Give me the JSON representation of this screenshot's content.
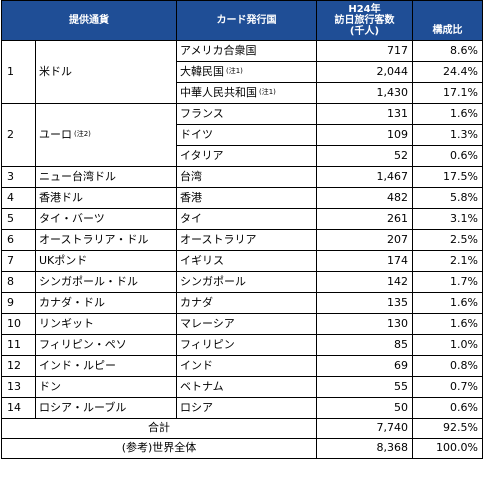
{
  "headers": {
    "currency": "提供通貨",
    "issuer": "カード発行国",
    "visitors_line1": "H24年",
    "visitors_line2": "訪日旅行客数",
    "visitors_line3": "(千人)",
    "share": "構成比"
  },
  "groups": [
    {
      "no": "1",
      "currency": "米ドル",
      "currency_note": "",
      "rows": [
        {
          "country": "アメリカ合衆国",
          "note": "",
          "visitors": "717",
          "share": "8.6%"
        },
        {
          "country": "大韓民国",
          "note": "(注1)",
          "visitors": "2,044",
          "share": "24.4%"
        },
        {
          "country": "中華人民共和国",
          "note": "(注1)",
          "visitors": "1,430",
          "share": "17.1%"
        }
      ]
    },
    {
      "no": "2",
      "currency": "ユーロ",
      "currency_note": "(注2)",
      "rows": [
        {
          "country": "フランス",
          "note": "",
          "visitors": "131",
          "share": "1.6%"
        },
        {
          "country": "ドイツ",
          "note": "",
          "visitors": "109",
          "share": "1.3%"
        },
        {
          "country": "イタリア",
          "note": "",
          "visitors": "52",
          "share": "0.6%"
        }
      ]
    },
    {
      "no": "3",
      "currency": "ニュー台湾ドル",
      "currency_note": "",
      "rows": [
        {
          "country": "台湾",
          "note": "",
          "visitors": "1,467",
          "share": "17.5%"
        }
      ]
    },
    {
      "no": "4",
      "currency": "香港ドル",
      "currency_note": "",
      "rows": [
        {
          "country": "香港",
          "note": "",
          "visitors": "482",
          "share": "5.8%"
        }
      ]
    },
    {
      "no": "5",
      "currency": "タイ・バーツ",
      "currency_note": "",
      "rows": [
        {
          "country": "タイ",
          "note": "",
          "visitors": "261",
          "share": "3.1%"
        }
      ]
    },
    {
      "no": "6",
      "currency": "オーストラリア・ドル",
      "currency_note": "",
      "rows": [
        {
          "country": "オーストラリア",
          "note": "",
          "visitors": "207",
          "share": "2.5%"
        }
      ]
    },
    {
      "no": "7",
      "currency": "UKポンド",
      "currency_note": "",
      "rows": [
        {
          "country": "イギリス",
          "note": "",
          "visitors": "174",
          "share": "2.1%"
        }
      ]
    },
    {
      "no": "8",
      "currency": "シンガポール・ドル",
      "currency_note": "",
      "rows": [
        {
          "country": "シンガポール",
          "note": "",
          "visitors": "142",
          "share": "1.7%"
        }
      ]
    },
    {
      "no": "9",
      "currency": "カナダ・ドル",
      "currency_note": "",
      "rows": [
        {
          "country": "カナダ",
          "note": "",
          "visitors": "135",
          "share": "1.6%"
        }
      ]
    },
    {
      "no": "10",
      "currency": "リンギット",
      "currency_note": "",
      "rows": [
        {
          "country": "マレーシア",
          "note": "",
          "visitors": "130",
          "share": "1.6%"
        }
      ]
    },
    {
      "no": "11",
      "currency": "フィリピン・ペソ",
      "currency_note": "",
      "rows": [
        {
          "country": "フィリピン",
          "note": "",
          "visitors": "85",
          "share": "1.0%"
        }
      ]
    },
    {
      "no": "12",
      "currency": "インド・ルピー",
      "currency_note": "",
      "rows": [
        {
          "country": "インド",
          "note": "",
          "visitors": "69",
          "share": "0.8%"
        }
      ]
    },
    {
      "no": "13",
      "currency": "ドン",
      "currency_note": "",
      "rows": [
        {
          "country": "ベトナム",
          "note": "",
          "visitors": "55",
          "share": "0.7%"
        }
      ]
    },
    {
      "no": "14",
      "currency": "ロシア・ルーブル",
      "currency_note": "",
      "rows": [
        {
          "country": "ロシア",
          "note": "",
          "visitors": "50",
          "share": "0.6%"
        }
      ]
    }
  ],
  "total": {
    "label": "合計",
    "visitors": "7,740",
    "share": "92.5%"
  },
  "world": {
    "label": "(参考)世界全体",
    "visitors": "8,368",
    "share": "100.0%"
  },
  "colors": {
    "header_bg": "#1f4e96",
    "header_text": "#ffffff"
  }
}
